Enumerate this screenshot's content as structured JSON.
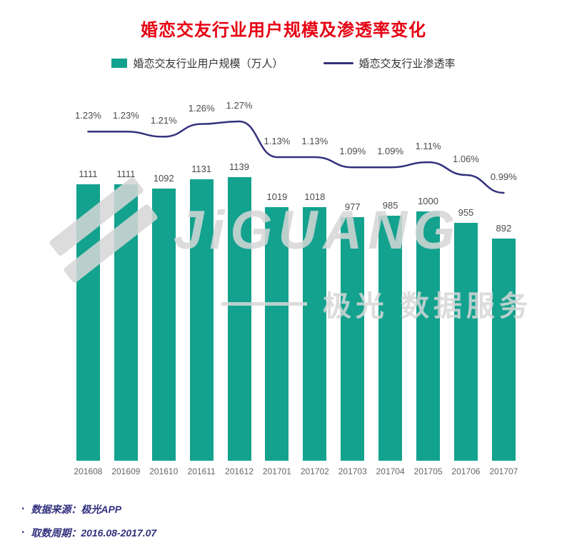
{
  "title": "婚恋交友行业用户规模及渗透率变化",
  "title_color": "#e60012",
  "legend": {
    "bar_label": "婚恋交友行业用户规模（万人）",
    "line_label": "婚恋交友行业渗透率"
  },
  "chart_data": {
    "type": "combo",
    "title": "婚恋交友行业用户规模及渗透率变化",
    "categories": [
      "201608",
      "201609",
      "201610",
      "201611",
      "201612",
      "201701",
      "201702",
      "201703",
      "201704",
      "201705",
      "201706",
      "201707"
    ],
    "series": [
      {
        "name": "婚恋交友行业用户规模（万人）",
        "type": "bar",
        "color": "#12a28e",
        "values": [
          1111,
          1111,
          1092,
          1131,
          1139,
          1019,
          1018,
          977,
          985,
          1000,
          955,
          892
        ]
      },
      {
        "name": "婚恋交友行业渗透率",
        "type": "line",
        "color": "#34317c",
        "values": [
          1.23,
          1.23,
          1.21,
          1.26,
          1.27,
          1.13,
          1.13,
          1.09,
          1.09,
          1.11,
          1.06,
          0.99
        ],
        "labels": [
          "1.23%",
          "1.23%",
          "1.21%",
          "1.26%",
          "1.27%",
          "1.13%",
          "1.13%",
          "1.09%",
          "1.09%",
          "1.11%",
          "1.06%",
          "0.99%"
        ]
      }
    ],
    "ylim_bar": [
      0,
      1200
    ],
    "ylim_line": [
      0.9,
      1.35
    ],
    "legend_position": "top",
    "grid": false,
    "value_labels_shown": true
  },
  "watermark": {
    "brand": "JiGUANG",
    "tagline": "极光 数据服务"
  },
  "footer": {
    "bullet": "·",
    "source": "数据来源：极光APP",
    "period": "取数周期：2016.08-2017.07"
  }
}
